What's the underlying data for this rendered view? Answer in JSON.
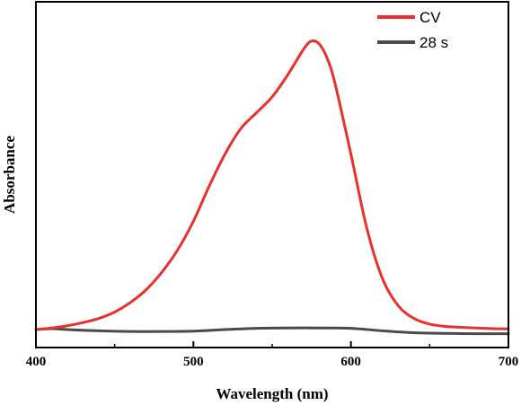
{
  "chart_data": {
    "type": "line",
    "title": "",
    "xlabel": "Wavelength (nm)",
    "ylabel": "Absorbance",
    "xlim": [
      400,
      700
    ],
    "ylim": [
      0,
      1.0
    ],
    "xticks": [
      400,
      500,
      600,
      700
    ],
    "grid": false,
    "legend_position": "top-right",
    "series": [
      {
        "name": "CV",
        "color": "#e8312f",
        "x": [
          400,
          410,
          420,
          430,
          440,
          450,
          460,
          470,
          480,
          490,
          500,
          510,
          520,
          530,
          540,
          550,
          560,
          570,
          575,
          580,
          585,
          590,
          600,
          610,
          620,
          630,
          640,
          650,
          660,
          670,
          680,
          690,
          700
        ],
        "y": [
          0.0,
          0.005,
          0.012,
          0.022,
          0.035,
          0.055,
          0.085,
          0.125,
          0.18,
          0.25,
          0.34,
          0.45,
          0.55,
          0.63,
          0.68,
          0.73,
          0.8,
          0.88,
          0.905,
          0.895,
          0.85,
          0.77,
          0.55,
          0.32,
          0.16,
          0.075,
          0.035,
          0.017,
          0.01,
          0.007,
          0.005,
          0.003,
          0.002
        ]
      },
      {
        "name": "28 s",
        "color": "#4a4a4a",
        "x": [
          400,
          410,
          420,
          440,
          460,
          480,
          500,
          520,
          540,
          560,
          580,
          600,
          620,
          640,
          660,
          680,
          700
        ],
        "y": [
          0.0,
          0.003,
          0.0,
          -0.004,
          -0.006,
          -0.006,
          -0.005,
          0.0,
          0.004,
          0.005,
          0.005,
          0.004,
          -0.004,
          -0.01,
          -0.012,
          -0.013,
          -0.013
        ]
      }
    ]
  }
}
